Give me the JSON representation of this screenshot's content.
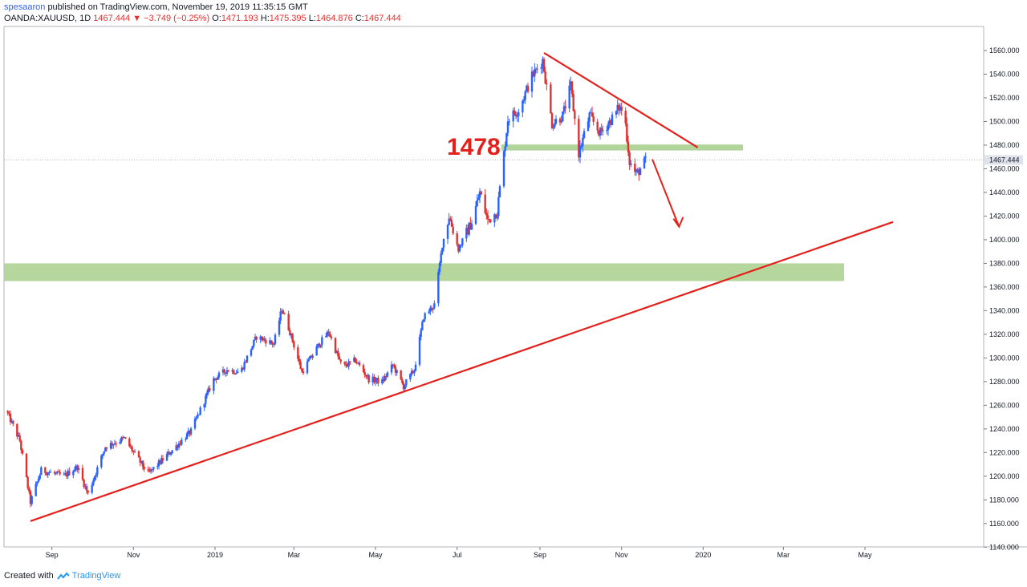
{
  "header": {
    "user": "spesaaron",
    "published_text": "published on TradingView.com, November 19, 2019 11:35:15 GMT",
    "symbol": "OANDA:XAUUSD, 1D",
    "last": "1467.444",
    "arrow": "▼",
    "change": "−3.749 (−0.25%)",
    "o_label": "O:",
    "o_value": "1471.193",
    "h_label": "H:",
    "h_value": "1475.395",
    "l_label": "L:",
    "l_value": "1464.876",
    "c_label": "C:",
    "c_value": "1467.444"
  },
  "footer": {
    "created": "Created with",
    "brand": "TradingView"
  },
  "annotations": {
    "level_label": "1478",
    "price_tag": "1467.444"
  },
  "colors": {
    "up": "#2962ff",
    "down": "#e03131",
    "annotation": "#e5201b",
    "zone": "#a8d08d"
  },
  "chart_data": {
    "type": "candlestick",
    "instrument": "OANDA:XAUUSD",
    "timeframe": "1D",
    "x_ticks": [
      "Sep",
      "Nov",
      "2019",
      "Mar",
      "May",
      "Jul",
      "Sep",
      "Nov",
      "2020",
      "Mar",
      "May"
    ],
    "y_ticks": [
      "1560.000",
      "1540.000",
      "1520.000",
      "1500.000",
      "1480.000",
      "1460.000",
      "1440.000",
      "1420.000",
      "1400.000",
      "1380.000",
      "1360.000",
      "1340.000",
      "1320.000",
      "1300.000",
      "1280.000",
      "1260.000",
      "1240.000",
      "1220.000",
      "1200.000",
      "1180.000",
      "1160.000",
      "1140.000"
    ],
    "ylim": [
      1136,
      1578
    ],
    "last_price": 1467.444,
    "close_path": [
      [
        "2018-07-29",
        1255
      ],
      [
        "2018-08-08",
        1230
      ],
      [
        "2018-08-16",
        1178
      ],
      [
        "2018-08-24",
        1205
      ],
      [
        "2018-09-10",
        1200
      ],
      [
        "2018-09-20",
        1208
      ],
      [
        "2018-09-28",
        1185
      ],
      [
        "2018-10-11",
        1225
      ],
      [
        "2018-10-25",
        1232
      ],
      [
        "2018-11-12",
        1202
      ],
      [
        "2018-11-30",
        1222
      ],
      [
        "2018-12-14",
        1238
      ],
      [
        "2018-12-31",
        1282
      ],
      [
        "2019-01-10",
        1290
      ],
      [
        "2019-01-20",
        1288
      ],
      [
        "2019-02-01",
        1318
      ],
      [
        "2019-02-14",
        1312
      ],
      [
        "2019-02-20",
        1342
      ],
      [
        "2019-02-26",
        1322
      ],
      [
        "2019-03-07",
        1288
      ],
      [
        "2019-03-20",
        1312
      ],
      [
        "2019-03-27",
        1322
      ],
      [
        "2019-04-06",
        1292
      ],
      [
        "2019-04-16",
        1298
      ],
      [
        "2019-04-26",
        1282
      ],
      [
        "2019-05-06",
        1280
      ],
      [
        "2019-05-14",
        1294
      ],
      [
        "2019-05-22",
        1276
      ],
      [
        "2019-05-30",
        1290
      ],
      [
        "2019-06-06",
        1335
      ],
      [
        "2019-06-14",
        1345
      ],
      [
        "2019-06-20",
        1396
      ],
      [
        "2019-06-25",
        1420
      ],
      [
        "2019-07-02",
        1392
      ],
      [
        "2019-07-12",
        1415
      ],
      [
        "2019-07-18",
        1440
      ],
      [
        "2019-07-24",
        1416
      ],
      [
        "2019-07-31",
        1424
      ],
      [
        "2019-08-08",
        1502
      ],
      [
        "2019-08-16",
        1510
      ],
      [
        "2019-08-26",
        1538
      ],
      [
        "2019-09-03",
        1552
      ],
      [
        "2019-09-10",
        1498
      ],
      [
        "2019-09-18",
        1505
      ],
      [
        "2019-09-24",
        1530
      ],
      [
        "2019-09-30",
        1473
      ],
      [
        "2019-10-08",
        1505
      ],
      [
        "2019-10-16",
        1490
      ],
      [
        "2019-10-26",
        1504
      ],
      [
        "2019-10-30",
        1512
      ],
      [
        "2019-11-03",
        1508
      ],
      [
        "2019-11-07",
        1466
      ],
      [
        "2019-11-12",
        1455
      ],
      [
        "2019-11-19",
        1467
      ]
    ],
    "support_zone": [
      1365,
      1380
    ],
    "resistance_level": 1478,
    "uptrend_line": [
      [
        "2018-08-16",
        1162
      ],
      [
        "2020-05-22",
        1415
      ]
    ],
    "downtrend_line": [
      [
        "2019-09-04",
        1558
      ],
      [
        "2019-12-28",
        1478
      ]
    ],
    "projection_arrow": [
      [
        "2019-11-24",
        1468
      ],
      [
        "2019-12-14",
        1411
      ]
    ]
  }
}
